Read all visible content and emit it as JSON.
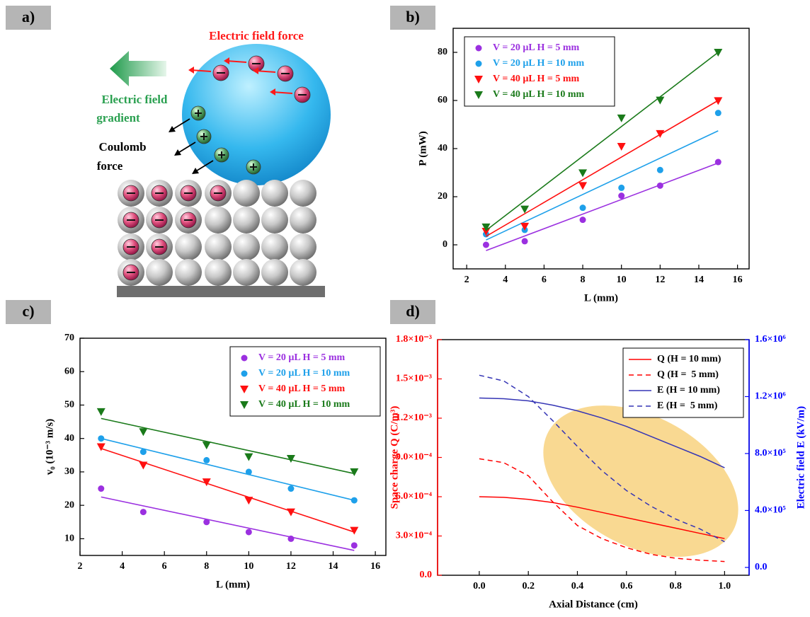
{
  "panel_labels": [
    "a)",
    "b)",
    "c)",
    "d)"
  ],
  "diagram": {
    "force_label": "Electric field force",
    "gradient_label": [
      "Electric field",
      "gradient"
    ],
    "coulomb_label": [
      "Coulomb",
      "force"
    ]
  },
  "chart_data": [
    {
      "type": "scatter",
      "xlabel": "L (mm)",
      "ylabel": "P (mW)",
      "x": [
        3,
        5,
        8,
        10,
        12,
        15
      ],
      "fit_x": [
        3,
        15
      ],
      "xlim": [
        1.3,
        16.6
      ],
      "xticks": [
        2,
        4,
        6,
        8,
        10,
        12,
        14,
        16
      ],
      "ylim": [
        -10,
        90
      ],
      "yticks": [
        0,
        20,
        40,
        60,
        80
      ],
      "legend": "upper left",
      "series": [
        {
          "name": "V = 20 µL H = 5 mm",
          "color": "#9b30e0",
          "marker": "circle",
          "values": [
            0,
            1.5,
            10.4,
            20.4,
            24.6,
            34.4
          ],
          "fit_values": [
            -2.4,
            34
          ]
        },
        {
          "name": "V = 20 µL H = 10 mm",
          "color": "#1ea0ea",
          "marker": "circle",
          "values": [
            4.4,
            6.2,
            15.4,
            23.7,
            31.1,
            54.8
          ],
          "fit_values": [
            2,
            47.4
          ]
        },
        {
          "name": "V = 40 µL H = 5 mm",
          "color": "#ff1010",
          "marker": "triangle-down",
          "values": [
            5.6,
            7.7,
            24.6,
            40.9,
            46.2,
            59.9
          ],
          "fit_values": [
            3.5,
            60
          ]
        },
        {
          "name": "V = 40 µL H = 10 mm",
          "color": "#1a7a1a",
          "marker": "triangle-down",
          "values": [
            7.4,
            14.8,
            29.9,
            52.7,
            60.1,
            80
          ],
          "fit_values": [
            6,
            80
          ]
        }
      ]
    },
    {
      "type": "scatter",
      "xlabel": "L (mm)",
      "ylabel": "v₀ (10⁻³ m/s)",
      "x": [
        3,
        5,
        8,
        10,
        12,
        15
      ],
      "fit_x": [
        3,
        15
      ],
      "xlim": [
        2,
        16.5
      ],
      "xticks": [
        2,
        4,
        6,
        8,
        10,
        12,
        14,
        16
      ],
      "ylim": [
        5,
        70
      ],
      "yticks": [
        10,
        20,
        30,
        40,
        50,
        60,
        70
      ],
      "legend": "upper right",
      "series": [
        {
          "name": "V = 20 µL H = 5 mm",
          "color": "#9b30e0",
          "marker": "circle",
          "values": [
            25,
            18,
            15,
            12,
            10,
            8
          ],
          "fit_values": [
            22.5,
            6.5
          ]
        },
        {
          "name": "V = 20 µL H = 10 mm",
          "color": "#1ea0ea",
          "marker": "circle",
          "values": [
            40,
            36,
            33.5,
            30,
            25,
            21.5
          ],
          "fit_values": [
            40,
            21.5
          ]
        },
        {
          "name": "V = 40 µL H = 5 mm",
          "color": "#ff1010",
          "marker": "triangle-down",
          "values": [
            37.5,
            32,
            27,
            21.5,
            18,
            12.5
          ],
          "fit_values": [
            37,
            12
          ]
        },
        {
          "name": "V = 40 µL H = 10 mm",
          "color": "#1a7a1a",
          "marker": "triangle-down",
          "values": [
            48,
            42,
            38,
            34.5,
            34,
            30
          ],
          "fit_values": [
            46,
            29.5
          ]
        }
      ]
    },
    {
      "type": "line",
      "xlabel": "Axial Distance (cm)",
      "ylabel": "Space charge Q (C/m³)",
      "y2label": "Electric field E (kV/m)",
      "ylabel_color": "#ff0000",
      "y2label_color": "#0000ff",
      "x": [
        0,
        0.1,
        0.2,
        0.3,
        0.4,
        0.5,
        0.6,
        0.7,
        0.8,
        0.9,
        1.0
      ],
      "xlim": [
        -0.17,
        1.1
      ],
      "xticks": [
        {
          "value": 0,
          "label": "0.0"
        },
        {
          "value": 0.2,
          "label": "0.2"
        },
        {
          "value": 0.4,
          "label": "0.4"
        },
        {
          "value": 0.6,
          "label": "0.6"
        },
        {
          "value": 0.8,
          "label": "0.8"
        },
        {
          "value": 1,
          "label": "1.0"
        }
      ],
      "ylim": [
        0,
        0.0018
      ],
      "yticks": [
        {
          "value": 0,
          "label": "0.0"
        },
        {
          "value": 0.0003,
          "label": "3.0×10⁻⁴"
        },
        {
          "value": 0.0006,
          "label": "6.0×10⁻⁴"
        },
        {
          "value": 0.0009,
          "label": "9.0×10⁻⁴"
        },
        {
          "value": 0.0012,
          "label": "1.2×10⁻³"
        },
        {
          "value": 0.0015,
          "label": "1.5×10⁻³"
        },
        {
          "value": 0.0018,
          "label": "1.8×10⁻³"
        }
      ],
      "y2lim": [
        -55000,
        1600000
      ],
      "y2ticks": [
        {
          "value": 0,
          "label": "0.0"
        },
        {
          "value": 400000,
          "label": "4.0×10⁵"
        },
        {
          "value": 800000,
          "label": "8.0×10⁵"
        },
        {
          "value": 1200000,
          "label": "1.2×10⁶"
        },
        {
          "value": 1600000,
          "label": "1.6×10⁶"
        }
      ],
      "legend": "upper right",
      "series": [
        {
          "name": "Q (H = 10 mm)",
          "color": "#ff0000",
          "dash": false,
          "values": [
            0.0006,
            0.000595,
            0.00058,
            0.000555,
            0.00052,
            0.00048,
            0.00044,
            0.0004,
            0.00036,
            0.00032,
            0.00028
          ]
        },
        {
          "name": "Q (H =  5 mm)",
          "color": "#ff0000",
          "dash": true,
          "values": [
            0.00089,
            0.00086,
            0.00076,
            0.00056,
            0.00038,
            0.00028,
            0.00021,
            0.00016,
            0.00013,
            0.000115,
            0.000105
          ]
        },
        {
          "name": "E (H = 10 mm)",
          "color": "#3535b5",
          "dash": false,
          "axis": "y2",
          "values": [
            1190000,
            1185000,
            1170000,
            1140000,
            1100000,
            1050000,
            990000,
            920000,
            850000,
            780000,
            700000
          ]
        },
        {
          "name": "E (H =  5 mm)",
          "color": "#3535b5",
          "dash": true,
          "axis": "y2",
          "values": [
            1350000,
            1310000,
            1200000,
            1030000,
            850000,
            680000,
            540000,
            430000,
            340000,
            270000,
            180000
          ]
        }
      ]
    }
  ]
}
